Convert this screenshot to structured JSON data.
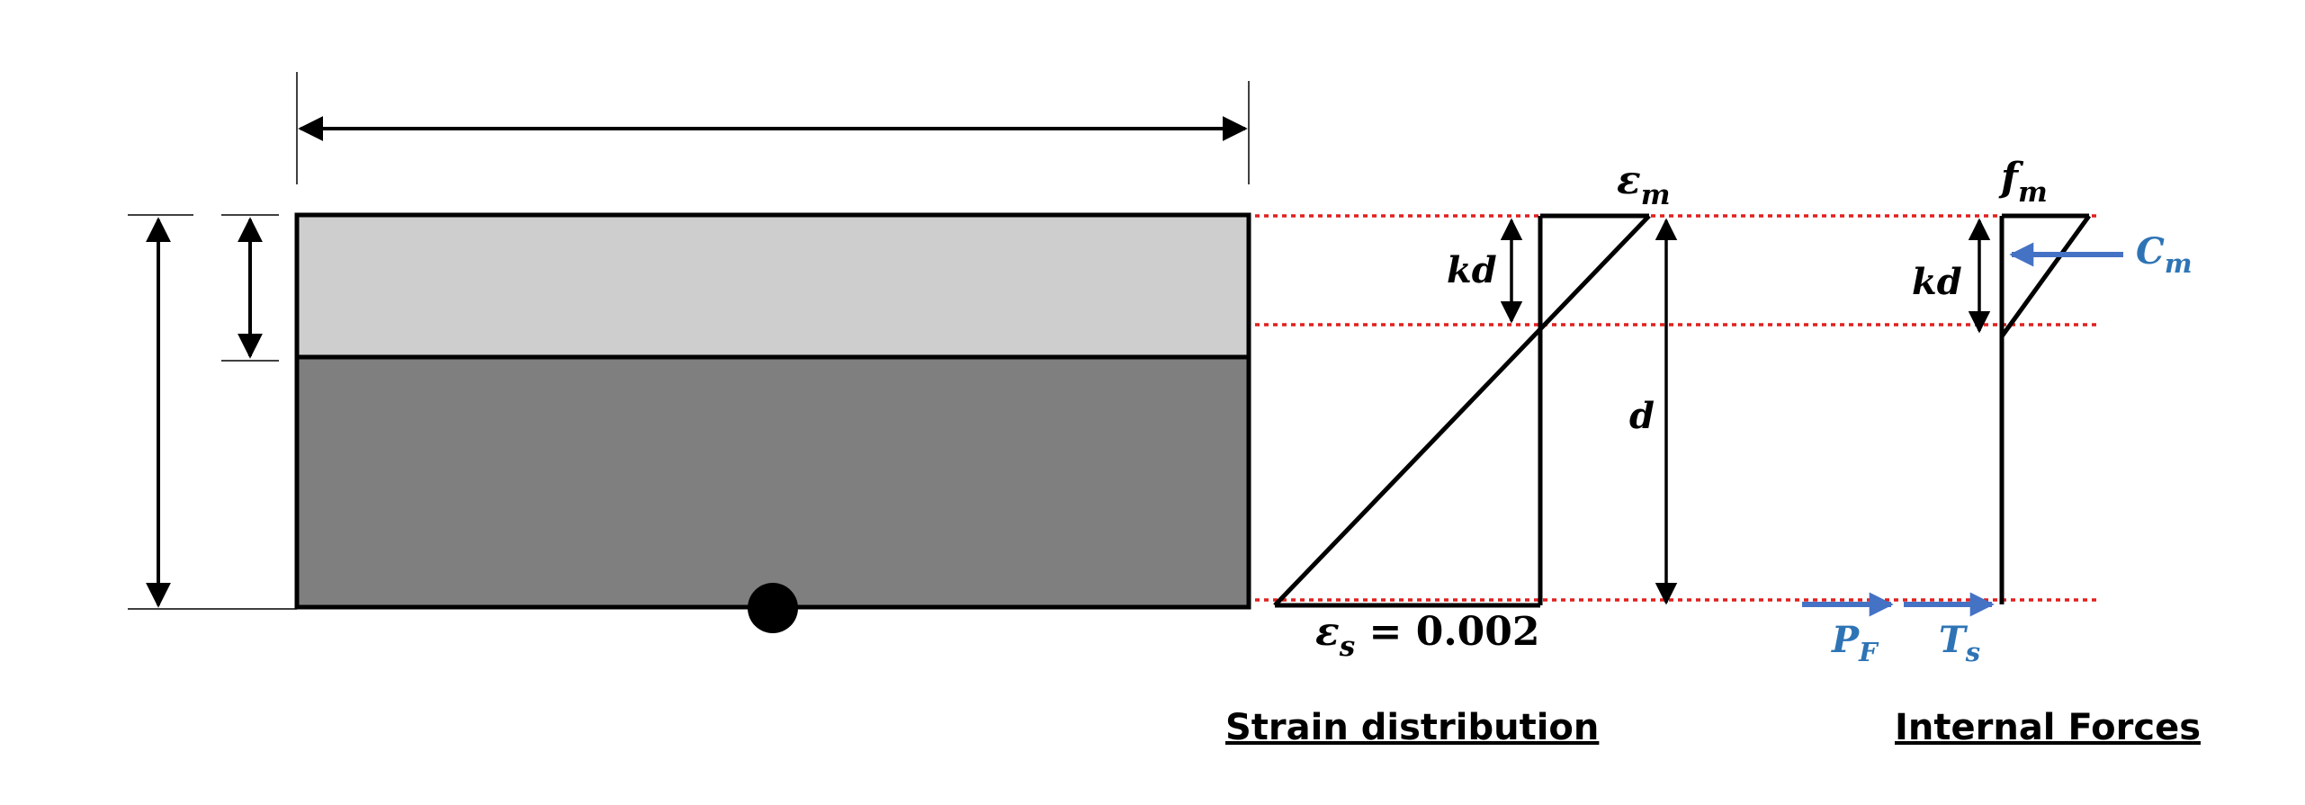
{
  "strain_diagram": {
    "epsilon_m": {
      "sym": "ε",
      "sub": "m"
    },
    "epsilon_s": {
      "sym": "ε",
      "sub": "s",
      "rest": " = 0.002"
    },
    "kd": "kd",
    "d": "d",
    "title": "Strain distribution"
  },
  "forces_diagram": {
    "f_m": {
      "sym": "f",
      "sub": "m"
    },
    "kd": "kd",
    "C_m": {
      "sym": "C",
      "sub": "m"
    },
    "P_F": {
      "sym": "P",
      "sub": "F"
    },
    "T_s": {
      "sym": "T",
      "sub": "s"
    },
    "title": "Internal Forces"
  },
  "colors": {
    "top_layer": "#cfcecf",
    "bottom_layer": "#7f7f7f",
    "outline": "#000000",
    "guide_line": "#e0201f",
    "force": "#4472c4",
    "force_label": "#2e74b5"
  }
}
